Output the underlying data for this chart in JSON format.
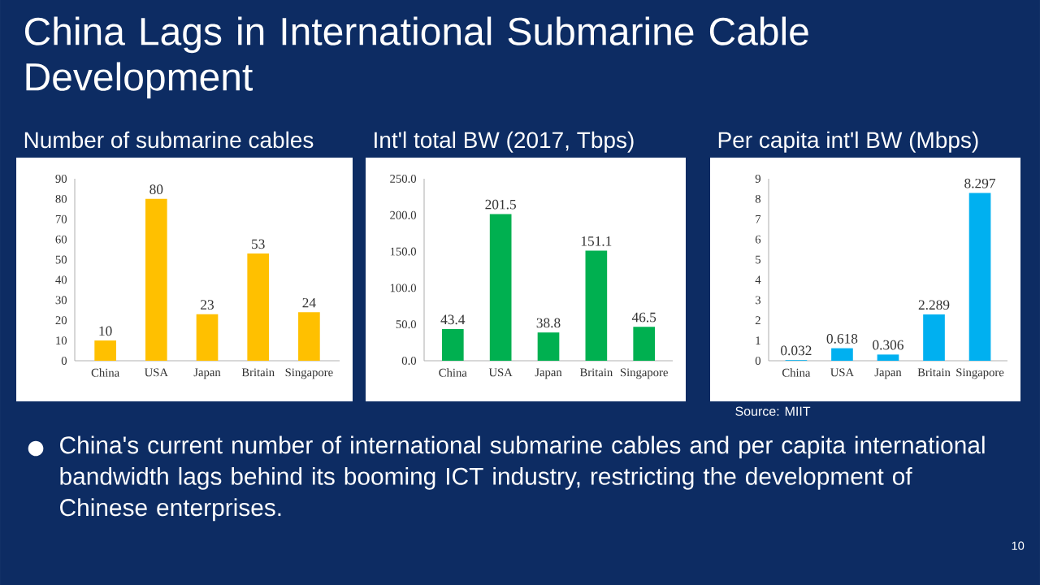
{
  "chart_data": [
    {
      "type": "other",
      "title": "China Lags in International Submarine Cable Development",
      "annotations": [
        "China's current number of international submarine cables and per capita international bandwidth lags behind its booming ICT industry, restricting the development of Chinese enterprises.",
        "Source: MIIT",
        "10"
      ]
    },
    {
      "type": "bar",
      "title": "Number of submarine cables",
      "categories": [
        "China",
        "USA",
        "Japan",
        "Britain",
        "Singapore"
      ],
      "values": [
        10,
        80,
        23,
        53,
        24
      ],
      "color": "#ffc000",
      "ylim": [
        0,
        90
      ],
      "yticks": [
        0,
        10,
        20,
        30,
        40,
        50,
        60,
        70,
        80,
        90
      ],
      "data_labels": true
    },
    {
      "type": "bar",
      "title": "Int'l total BW (2017, Tbps)",
      "categories": [
        "China",
        "USA",
        "Japan",
        "Britain",
        "Singapore"
      ],
      "values": [
        43.4,
        201.5,
        38.8,
        151.1,
        46.5
      ],
      "color": "#00b050",
      "ylim": [
        0,
        250
      ],
      "yticks": [
        {
          "value": 0,
          "label": "0.0"
        },
        {
          "value": 50,
          "label": "50.0"
        },
        {
          "value": 100,
          "label": "100.0"
        },
        {
          "value": 150,
          "label": "150.0"
        },
        {
          "value": 200,
          "label": "200.0"
        },
        {
          "value": 250,
          "label": "250.0"
        }
      ],
      "data_labels": true
    },
    {
      "type": "bar",
      "title": "Per capita int'l BW (Mbps)",
      "categories": [
        "China",
        "USA",
        "Japan",
        "Britain",
        "Singapore"
      ],
      "values": [
        0.032,
        0.618,
        0.306,
        2.289,
        8.297
      ],
      "color": "#00b0f0",
      "ylim": [
        0,
        9
      ],
      "yticks": [
        0,
        1,
        2,
        3,
        4,
        5,
        6,
        7,
        8,
        9
      ],
      "data_labels": true
    }
  ]
}
